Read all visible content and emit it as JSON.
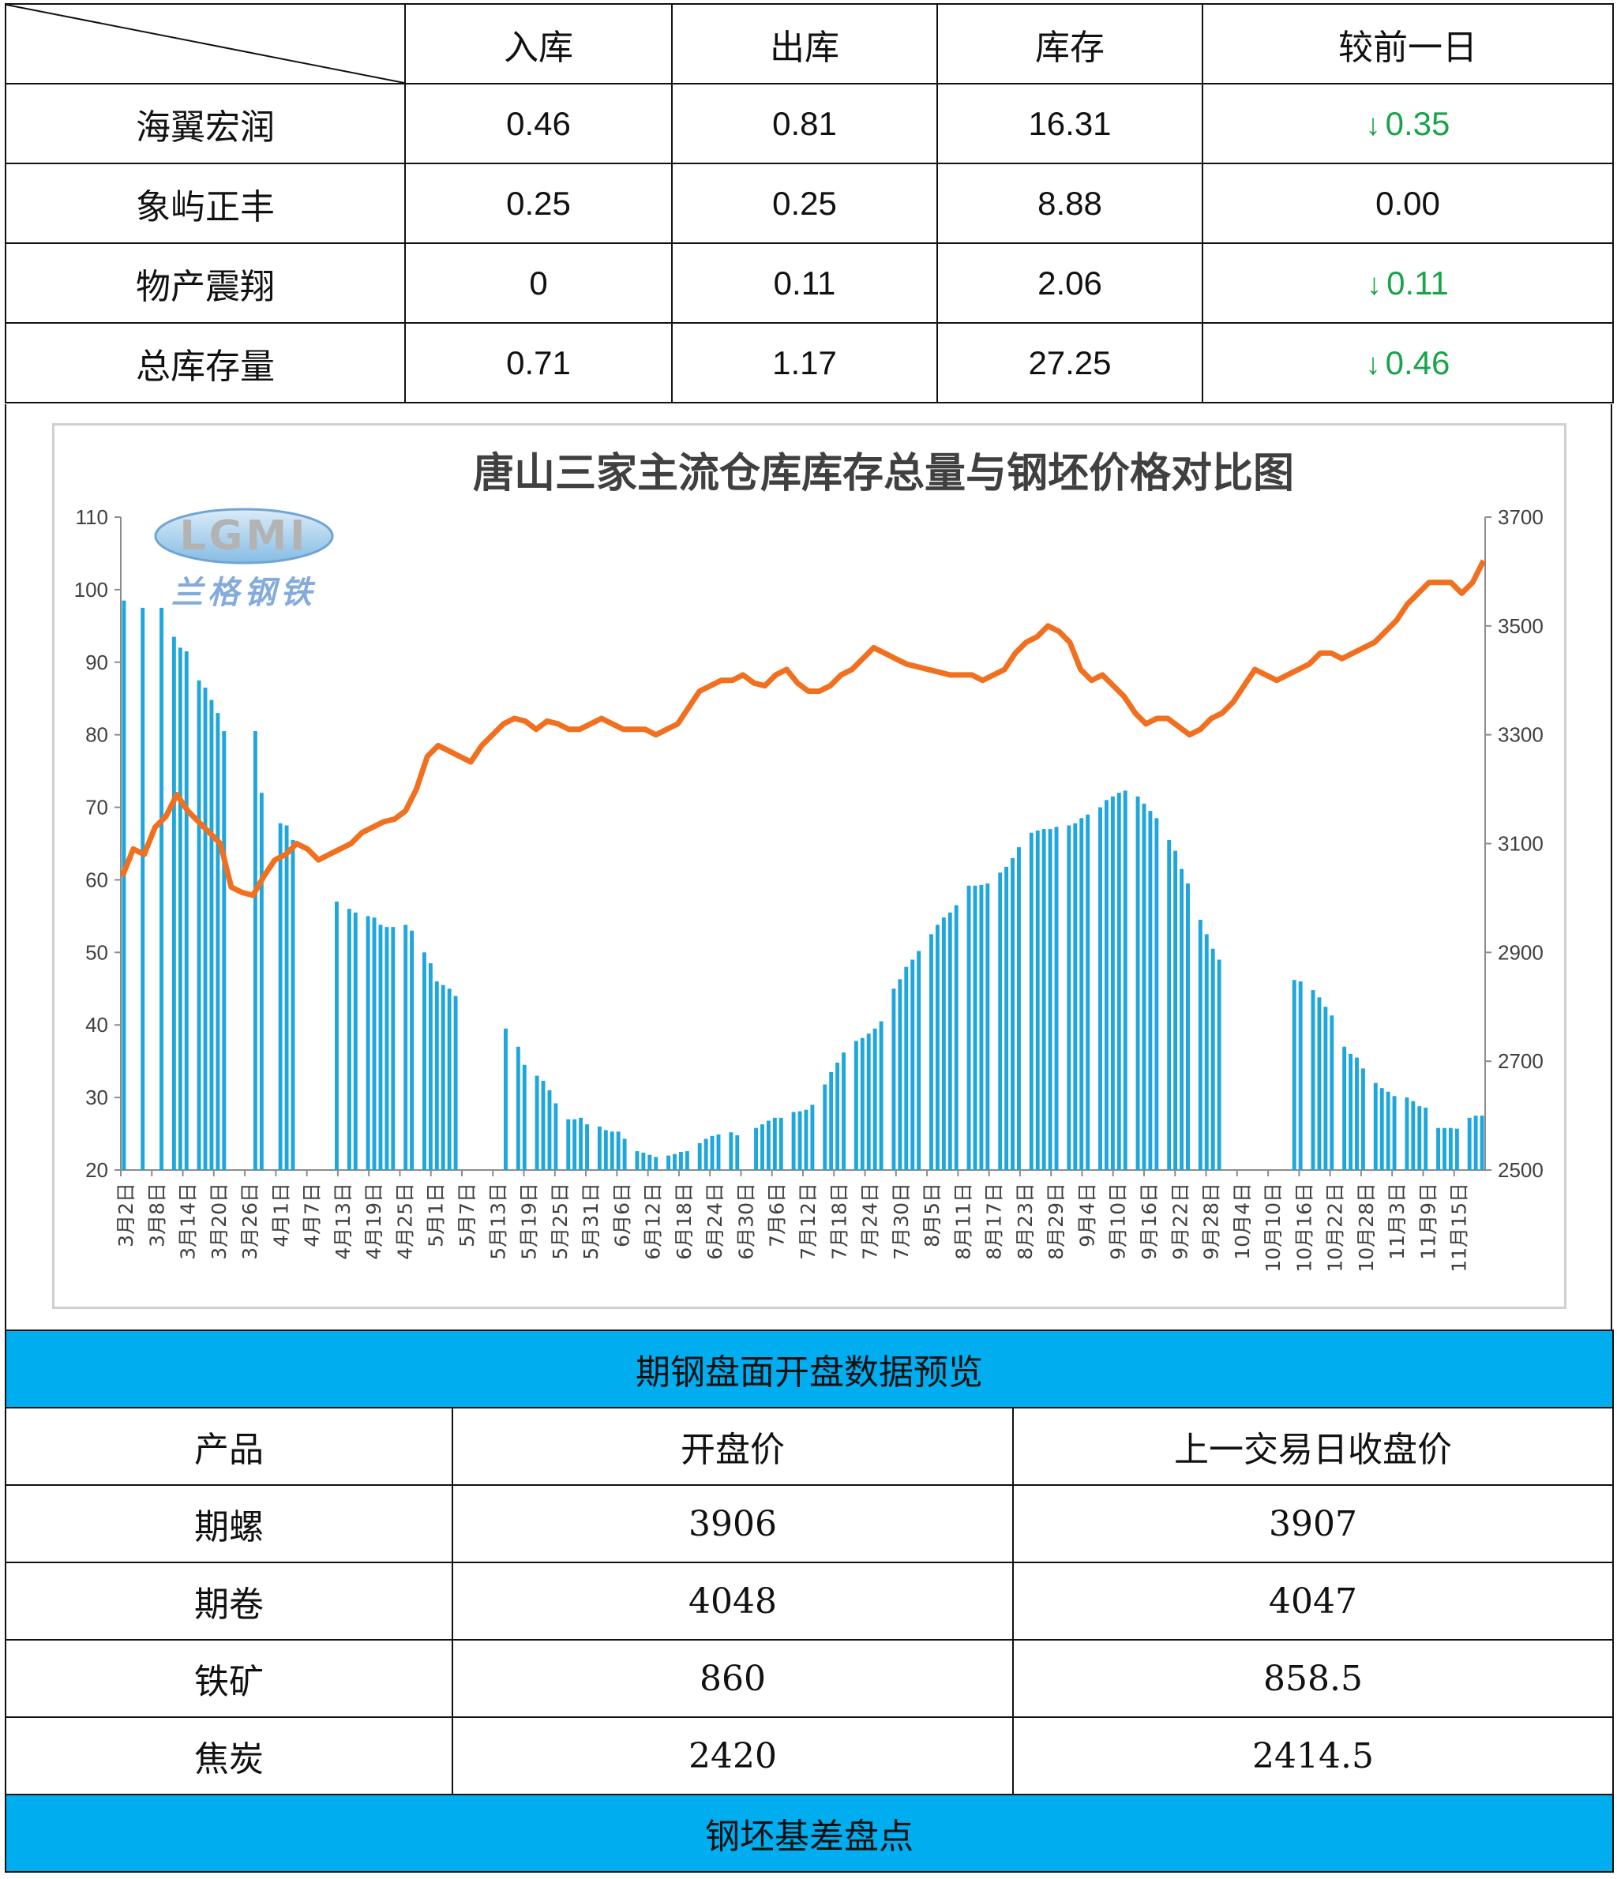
{
  "inventory_table": {
    "headers": [
      "入库",
      "出库",
      "库存",
      "较前一日"
    ],
    "rows": [
      {
        "name": "海翼宏润",
        "in": "0.46",
        "out": "0.81",
        "stock": "16.31",
        "change": "0.35",
        "direction": "down"
      },
      {
        "name": "象屿正丰",
        "in": "0.25",
        "out": "0.25",
        "stock": "8.88",
        "change": "0.00",
        "direction": "flat"
      },
      {
        "name": "物产震翔",
        "in": "0",
        "out": "0.11",
        "stock": "2.06",
        "change": "0.11",
        "direction": "down"
      },
      {
        "name": "总库存量",
        "in": "0.71",
        "out": "1.17",
        "stock": "27.25",
        "change": "0.46",
        "direction": "down"
      }
    ],
    "down_arrow": "↓",
    "down_color": "#1aa34a"
  },
  "chart_data": {
    "type": "bar+line",
    "title": "唐山三家主流仓库库存总量与钢坯价格对比图",
    "logo_text": "LGMI",
    "logo_caption": "兰格钢铁",
    "y_left": {
      "min": 20,
      "max": 110,
      "step": 10
    },
    "y_right": {
      "min": 2500,
      "max": 3700,
      "step": 200
    },
    "x_tick_labels": [
      "3月2日",
      "3月8日",
      "3月14日",
      "3月20日",
      "3月26日",
      "4月1日",
      "4月7日",
      "4月13日",
      "4月19日",
      "4月25日",
      "5月1日",
      "5月7日",
      "5月13日",
      "5月19日",
      "5月25日",
      "5月31日",
      "6月6日",
      "6月12日",
      "6月18日",
      "6月24日",
      "6月30日",
      "7月6日",
      "7月12日",
      "7月18日",
      "7月24日",
      "7月30日",
      "8月5日",
      "8月11日",
      "8月17日",
      "8月23日",
      "8月29日",
      "9月4日",
      "9月10日",
      "9月16日",
      "9月22日",
      "9月28日",
      "10月4日",
      "10月10日",
      "10月16日",
      "10月22日",
      "10月28日",
      "11月3日",
      "11月9日",
      "11月15日"
    ],
    "bar_color": "#1fa7dd",
    "line_color": "#f07020",
    "bars": [
      98.5,
      null,
      null,
      97.5,
      null,
      null,
      97.5,
      null,
      93.5,
      92,
      91.5,
      null,
      87.5,
      86.5,
      84.8,
      83,
      80.5,
      null,
      null,
      null,
      null,
      80.5,
      72,
      null,
      null,
      67.8,
      67.5,
      65.5,
      null,
      null,
      null,
      null,
      null,
      null,
      57,
      null,
      56,
      55.5,
      null,
      55,
      54.8,
      53.8,
      53.5,
      53.5,
      null,
      53.8,
      53,
      null,
      50,
      48.5,
      46,
      45.5,
      45,
      44,
      null,
      null,
      null,
      null,
      null,
      null,
      null,
      39.5,
      null,
      37,
      34.5,
      null,
      33,
      32.3,
      31,
      29.2,
      null,
      27,
      27,
      27.2,
      26.3,
      null,
      26,
      25.5,
      25.3,
      25.3,
      24.3,
      null,
      22.6,
      22.4,
      22.1,
      21.8,
      null,
      22,
      22.2,
      22.5,
      22.6,
      null,
      23.7,
      24.3,
      24.7,
      24.9,
      null,
      25.2,
      24.8,
      null,
      null,
      25.8,
      26.3,
      26.8,
      27.2,
      27.2,
      null,
      28,
      28.1,
      28.3,
      29,
      null,
      31.8,
      33.5,
      34.8,
      36.2,
      null,
      37.8,
      38.2,
      38.8,
      39.5,
      40.5,
      null,
      45,
      46.3,
      48,
      49,
      50.2,
      null,
      52.5,
      53.8,
      54.8,
      55.5,
      56.5,
      null,
      59.2,
      59.2,
      59.3,
      59.5,
      null,
      61,
      61.8,
      63,
      64.5,
      null,
      66.5,
      66.8,
      67,
      67,
      67.3,
      null,
      67.5,
      67.8,
      68.5,
      69,
      null,
      70,
      71,
      71.5,
      72,
      72.3,
      null,
      71.5,
      70.5,
      69.5,
      68.5,
      null,
      65.5,
      64,
      61.5,
      59.5,
      null,
      54.5,
      52.5,
      50.5,
      49,
      null,
      null,
      null,
      null,
      null,
      null,
      null,
      null,
      null,
      null,
      null,
      46.2,
      46,
      null,
      44.8,
      43.8,
      42.5,
      41.3,
      null,
      37,
      36,
      35.5,
      34,
      null,
      32,
      31.3,
      30.8,
      30.2,
      null,
      30,
      29.5,
      28.8,
      28.6,
      null,
      25.8,
      25.8,
      25.8,
      25.7,
      null,
      27.2,
      27.5,
      27.5
    ],
    "line": [
      3040,
      3090,
      3080,
      3130,
      3150,
      3190,
      3160,
      3140,
      3120,
      3100,
      3020,
      3010,
      3005,
      3040,
      3070,
      3080,
      3100,
      3090,
      3070,
      3080,
      3090,
      3100,
      3120,
      3130,
      3140,
      3145,
      3160,
      3200,
      3260,
      3280,
      3270,
      3260,
      3250,
      3280,
      3300,
      3320,
      3330,
      3325,
      3310,
      3325,
      3320,
      3310,
      3310,
      3320,
      3330,
      3320,
      3310,
      3310,
      3310,
      3300,
      3310,
      3320,
      3350,
      3380,
      3390,
      3400,
      3400,
      3410,
      3395,
      3390,
      3410,
      3420,
      3395,
      3380,
      3380,
      3390,
      3410,
      3420,
      3440,
      3460,
      3450,
      3440,
      3430,
      3425,
      3420,
      3415,
      3410,
      3410,
      3410,
      3400,
      3410,
      3420,
      3450,
      3470,
      3480,
      3500,
      3490,
      3470,
      3420,
      3400,
      3410,
      3390,
      3370,
      3340,
      3320,
      3330,
      3330,
      3315,
      3300,
      3310,
      3330,
      3340,
      3360,
      3390,
      3420,
      3410,
      3400,
      3410,
      3420,
      3430,
      3450,
      3450,
      3440,
      3450,
      3460,
      3470,
      3490,
      3510,
      3540,
      3560,
      3580,
      3580,
      3580,
      3560,
      3580,
      3620
    ]
  },
  "futures": {
    "header_title": "期钢盘面开盘数据预览",
    "columns": [
      "产品",
      "开盘价",
      "上一交易日收盘价"
    ],
    "rows": [
      {
        "product": "期螺",
        "open": "3906",
        "prev_close": "3907"
      },
      {
        "product": "期卷",
        "open": "4048",
        "prev_close": "4047"
      },
      {
        "product": "铁矿",
        "open": "860",
        "prev_close": "858.5"
      },
      {
        "product": "焦炭",
        "open": "2420",
        "prev_close": "2414.5"
      }
    ],
    "footer_title": "钢坯基差盘点",
    "header_color": "#00adef"
  }
}
